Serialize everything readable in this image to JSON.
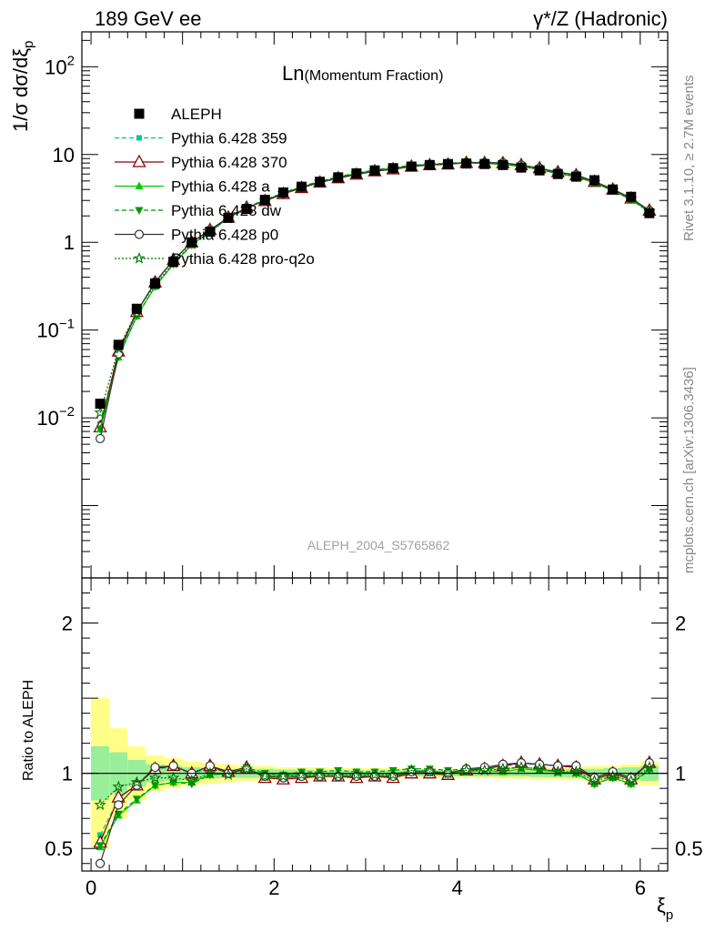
{
  "header": {
    "left": "189 GeV ee",
    "right": "γ*/Z (Hadronic)"
  },
  "side_labels": {
    "rivet": "Rivet 3.1.10, ≥ 2.7M events",
    "mcplots": "mcplots.cern.ch [arXiv:1306.3436]"
  },
  "chart_data": {
    "type": "line",
    "title": "Ln(Momentum Fraction)",
    "title_main": "Ln",
    "title_sub": "(Momentum Fraction)",
    "analysis_id": "ALEPH_2004_S5765862",
    "ylabel": "1/σ dσ/dξ",
    "ylabel_sub": "p",
    "xlabel": "ξ",
    "xlabel_sub": "p",
    "ratio_ylabel": "Ratio to ALEPH",
    "xlim": [
      -0.1,
      6.3
    ],
    "ylim": [
      0.00015,
      250
    ],
    "ylog": true,
    "ratio_ylim": [
      0.35,
      2.3
    ],
    "x_ticks": [
      0,
      2,
      4,
      6
    ],
    "x_tick_labels": [
      "0",
      "2",
      "4",
      "6"
    ],
    "y_ticks": [
      0.01,
      0.1,
      1,
      10,
      100
    ],
    "y_tick_labels": [
      {
        "base": "10",
        "exp": "−2"
      },
      {
        "base": "10",
        "exp": "−1"
      },
      {
        "base": "1",
        "exp": ""
      },
      {
        "base": "10",
        "exp": ""
      },
      {
        "base": "10",
        "exp": "2"
      }
    ],
    "ratio_ticks": [
      0.5,
      1,
      2
    ],
    "ratio_tick_labels": [
      "0.5",
      "1",
      "2"
    ],
    "legend_position": "top-left",
    "x": [
      0.1,
      0.3,
      0.5,
      0.7,
      0.9,
      1.1,
      1.3,
      1.5,
      1.7,
      1.9,
      2.1,
      2.3,
      2.5,
      2.7,
      2.9,
      3.1,
      3.3,
      3.5,
      3.7,
      3.9,
      4.1,
      4.3,
      4.5,
      4.7,
      4.9,
      5.1,
      5.3,
      5.5,
      5.7,
      5.9,
      6.1
    ],
    "band_edges": [
      0,
      0.2,
      0.4,
      0.6,
      0.8,
      1.0,
      1.2,
      1.4,
      1.6,
      1.8,
      2.0,
      2.2,
      2.4,
      2.6,
      2.8,
      3.0,
      3.2,
      3.4,
      3.6,
      3.8,
      4.0,
      4.2,
      4.4,
      4.6,
      4.8,
      5.0,
      5.2,
      5.4,
      5.6,
      5.8,
      6.0,
      6.2
    ],
    "data": {
      "name": "ALEPH",
      "values": [
        0.0145,
        0.068,
        0.175,
        0.34,
        0.6,
        1.0,
        1.32,
        1.9,
        2.4,
        3.05,
        3.7,
        4.3,
        4.9,
        5.5,
        6.1,
        6.6,
        7.0,
        7.3,
        7.6,
        7.8,
        7.9,
        7.8,
        7.6,
        7.1,
        6.6,
        6.0,
        5.6,
        5.1,
        4.0,
        3.3,
        2.15
      ]
    },
    "band_stat": [
      0.18,
      0.14,
      0.09,
      0.06,
      0.05,
      0.04,
      0.035,
      0.03,
      0.03,
      0.03,
      0.025,
      0.025,
      0.02,
      0.02,
      0.02,
      0.02,
      0.02,
      0.02,
      0.02,
      0.02,
      0.02,
      0.02,
      0.02,
      0.02,
      0.025,
      0.025,
      0.03,
      0.03,
      0.035,
      0.04,
      0.05
    ],
    "band_total": [
      0.5,
      0.3,
      0.18,
      0.12,
      0.1,
      0.08,
      0.07,
      0.06,
      0.05,
      0.05,
      0.04,
      0.04,
      0.04,
      0.035,
      0.035,
      0.035,
      0.035,
      0.03,
      0.03,
      0.03,
      0.03,
      0.03,
      0.035,
      0.035,
      0.04,
      0.04,
      0.045,
      0.05,
      0.05,
      0.06,
      0.08
    ],
    "series": [
      {
        "name": "Pythia 6.428 359",
        "color": "#00cc88",
        "dash": "5,3",
        "marker": "square-small",
        "ratio": [
          0.59,
          0.83,
          0.93,
          1.03,
          1.04,
          1.0,
          1.03,
          1.01,
          1.02,
          0.99,
          0.98,
          0.99,
          0.99,
          0.99,
          0.99,
          0.99,
          0.99,
          1.02,
          1.02,
          1.0,
          1.02,
          1.04,
          1.05,
          1.06,
          1.06,
          1.05,
          1.04,
          0.96,
          1.0,
          0.96,
          1.07
        ]
      },
      {
        "name": "Pythia 6.428 370",
        "color": "#8b0000",
        "dash": "",
        "marker": "triangle-open",
        "ratio": [
          0.54,
          0.84,
          0.92,
          1.03,
          1.05,
          1.0,
          1.05,
          1.01,
          1.04,
          0.97,
          0.96,
          0.97,
          0.98,
          0.98,
          0.97,
          0.98,
          0.97,
          1.0,
          1.0,
          0.99,
          1.02,
          1.03,
          1.05,
          1.07,
          1.06,
          1.05,
          1.04,
          0.96,
          1.0,
          0.96,
          1.07
        ]
      },
      {
        "name": "Pythia 6.428 a",
        "color": "#00cc00",
        "dash": "",
        "marker": "triangle",
        "ratio": [
          0.51,
          0.72,
          0.82,
          0.92,
          0.94,
          0.94,
          0.99,
          1.0,
          1.03,
          0.99,
          0.98,
          1.0,
          1.0,
          1.0,
          1.0,
          1.0,
          1.0,
          1.01,
          1.02,
          1.0,
          1.01,
          1.02,
          1.01,
          1.03,
          1.02,
          1.01,
          1.0,
          0.93,
          0.97,
          0.93,
          1.03
        ]
      },
      {
        "name": "Pythia 6.428 dw",
        "color": "#009900",
        "dash": "5,3",
        "marker": "triangle-down",
        "ratio": [
          0.52,
          0.73,
          0.83,
          0.92,
          0.94,
          0.93,
          0.99,
          1.0,
          1.04,
          1.0,
          0.99,
          1.01,
          1.01,
          1.02,
          1.01,
          1.01,
          1.02,
          1.03,
          1.03,
          1.02,
          1.03,
          1.03,
          1.03,
          1.04,
          1.03,
          1.01,
          1.0,
          0.93,
          0.97,
          0.93,
          1.02
        ]
      },
      {
        "name": "Pythia 6.428 p0",
        "color": "#333333",
        "dash": "",
        "marker": "circle-open",
        "ratio": [
          0.4,
          0.79,
          0.92,
          1.04,
          1.05,
          1.0,
          1.05,
          1.0,
          1.03,
          0.98,
          0.97,
          0.98,
          0.98,
          0.98,
          0.98,
          0.98,
          0.98,
          1.01,
          1.01,
          1.0,
          1.03,
          1.04,
          1.06,
          1.07,
          1.06,
          1.05,
          1.05,
          0.97,
          1.01,
          0.97,
          1.07
        ]
      },
      {
        "name": "Pythia 6.428 pro-q2o",
        "color": "#007700",
        "dash": "2,2",
        "marker": "star-open",
        "ratio": [
          0.79,
          0.91,
          0.94,
          0.97,
          0.97,
          0.95,
          1.0,
          0.99,
          1.03,
          0.98,
          0.98,
          0.99,
          0.99,
          0.99,
          0.99,
          0.99,
          0.99,
          1.02,
          1.01,
          1.0,
          1.02,
          1.02,
          1.03,
          1.04,
          1.03,
          1.01,
          1.01,
          0.95,
          0.98,
          0.95,
          1.04
        ]
      }
    ]
  }
}
